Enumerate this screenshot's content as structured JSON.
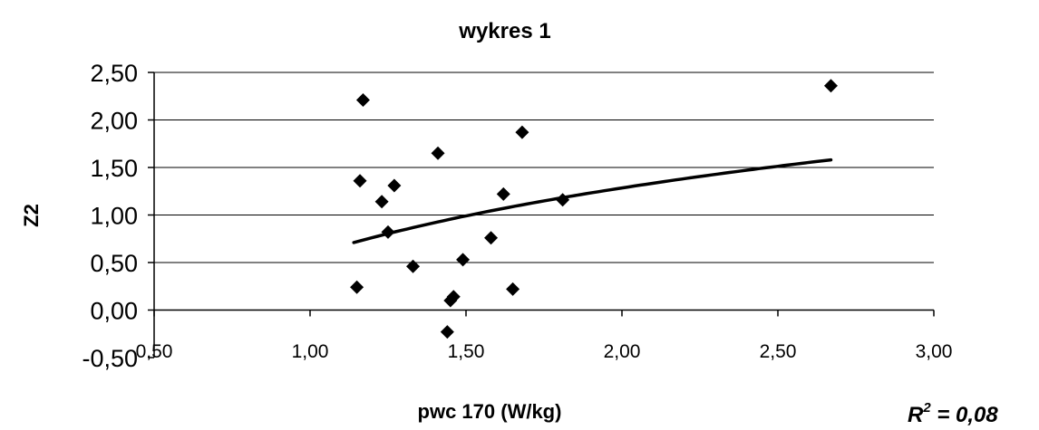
{
  "chart_data": {
    "type": "scatter",
    "title": "wykres 1",
    "xlabel": "pwc 170 (W/kg)",
    "ylabel": "Z2",
    "xlim": [
      0.5,
      3.0
    ],
    "ylim": [
      -0.5,
      2.5
    ],
    "xticks": [
      0.5,
      1.0,
      1.5,
      2.0,
      2.5,
      3.0
    ],
    "xtick_labels": [
      "0,50",
      "1,00",
      "1,50",
      "2,00",
      "2,50",
      "3,00"
    ],
    "yticks": [
      -0.5,
      0.0,
      0.5,
      1.0,
      1.5,
      2.0,
      2.5
    ],
    "ytick_labels": [
      "-0,50",
      "0,00",
      "0,50",
      "1,00",
      "1,50",
      "2,00",
      "2,50"
    ],
    "grid": "horizontal",
    "legend": "none",
    "marker": "diamond",
    "marker_color": "#000000",
    "series": [
      {
        "points": [
          {
            "x": 1.17,
            "y": 2.21
          },
          {
            "x": 1.16,
            "y": 1.36
          },
          {
            "x": 1.15,
            "y": 0.24
          },
          {
            "x": 1.23,
            "y": 1.14
          },
          {
            "x": 1.25,
            "y": 0.82
          },
          {
            "x": 1.27,
            "y": 1.31
          },
          {
            "x": 1.33,
            "y": 0.46
          },
          {
            "x": 1.41,
            "y": 1.65
          },
          {
            "x": 1.44,
            "y": -0.23
          },
          {
            "x": 1.45,
            "y": 0.1
          },
          {
            "x": 1.46,
            "y": 0.14
          },
          {
            "x": 1.49,
            "y": 0.53
          },
          {
            "x": 1.58,
            "y": 0.76
          },
          {
            "x": 1.62,
            "y": 1.22
          },
          {
            "x": 1.65,
            "y": 0.22
          },
          {
            "x": 1.68,
            "y": 1.87
          },
          {
            "x": 1.81,
            "y": 1.16
          },
          {
            "x": 2.67,
            "y": 2.36
          }
        ]
      }
    ],
    "trendline": {
      "type": "logarithmic",
      "x_range": [
        1.14,
        2.67
      ],
      "y_start": 0.71,
      "y_end": 1.58,
      "r2_label": "R",
      "r2_exp": "2",
      "r2_value": " = 0,08"
    }
  }
}
